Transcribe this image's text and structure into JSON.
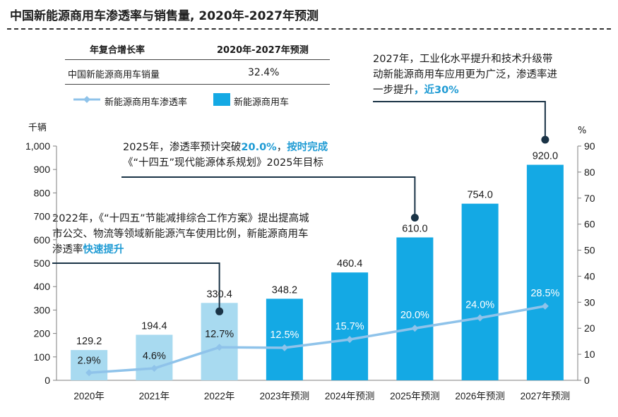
{
  "title": "中国新能源商用车渗透率与销售量, 2020年-2027年预测",
  "cagr_table": {
    "header_left": "年复合增长率",
    "header_right": "2020年-2027年预测",
    "row_label": "中国新能源商用车销量",
    "row_value": "32.4%"
  },
  "colors": {
    "bar_actual": "#a8daf0",
    "bar_forecast": "#14a9e4",
    "line": "#8fc3ea",
    "annotation_line": "#1a3346",
    "highlight_text": "#1f9bd4"
  },
  "annotations": [
    {
      "id": "2022",
      "parts": [
        {
          "text": "2022年，《“十四五”节能减排综合工作方案》提出提高城市公交、物流等领域新能源汽车使用比例，新能源商用车渗透率",
          "hl": false
        },
        {
          "text": "快速提升",
          "hl": true
        }
      ]
    },
    {
      "id": "2025",
      "parts": [
        {
          "text": "2025年，渗透率预计突破",
          "hl": false
        },
        {
          "text": "20.0%",
          "hl": true
        },
        {
          "text": "，",
          "hl": false
        },
        {
          "text": "按时完成",
          "hl": true
        },
        {
          "text": "《“十四五”现代能源体系规划》2025年目标",
          "hl": false
        }
      ]
    },
    {
      "id": "2027",
      "parts": [
        {
          "text": "2027年，工业化水平提升和技术升级带动新能源商用车应用更为广泛，渗透率进一步提升",
          "hl": false
        },
        {
          "text": "，近30%",
          "hl": true
        }
      ]
    }
  ],
  "chart_data": {
    "type": "bar",
    "title": "中国新能源商用车渗透率与销售量, 2020年-2027年预测",
    "categories": [
      "2020年",
      "2021年",
      "2022年",
      "2023年预测",
      "2024年预测",
      "2025年预测",
      "2026年预测",
      "2027年预测"
    ],
    "series": [
      {
        "name": "新能源商用车",
        "type": "bar",
        "axis": "left",
        "values": [
          129.2,
          194.4,
          330.4,
          348.2,
          460.4,
          610.0,
          754.0,
          920.0
        ],
        "labels": [
          "129.2",
          "194.4",
          "330.4",
          "348.2",
          "460.4",
          "610.0",
          "754.0",
          "920.0"
        ]
      },
      {
        "name": "新能源商用车渗透率",
        "type": "line",
        "axis": "right",
        "values": [
          2.9,
          4.6,
          12.7,
          12.5,
          15.7,
          20.0,
          24.0,
          28.5
        ],
        "labels": [
          "2.9%",
          "4.6%",
          "12.7%",
          "12.5%",
          "15.7%",
          "20.0%",
          "24.0%",
          "28.5%"
        ]
      }
    ],
    "forecast_from_index": 3,
    "y_left": {
      "label": "千辆",
      "min": 0,
      "max": 1000,
      "ticks": [
        "0",
        "100",
        "200",
        "300",
        "400",
        "500",
        "600",
        "700",
        "800",
        "900",
        "1,000"
      ]
    },
    "y_right": {
      "label": "%",
      "min": 0,
      "max": 90,
      "ticks": [
        "0",
        "10",
        "20",
        "30",
        "40",
        "50",
        "60",
        "70",
        "80",
        "90"
      ]
    },
    "legend": {
      "position": "top-left"
    },
    "grid": false
  }
}
